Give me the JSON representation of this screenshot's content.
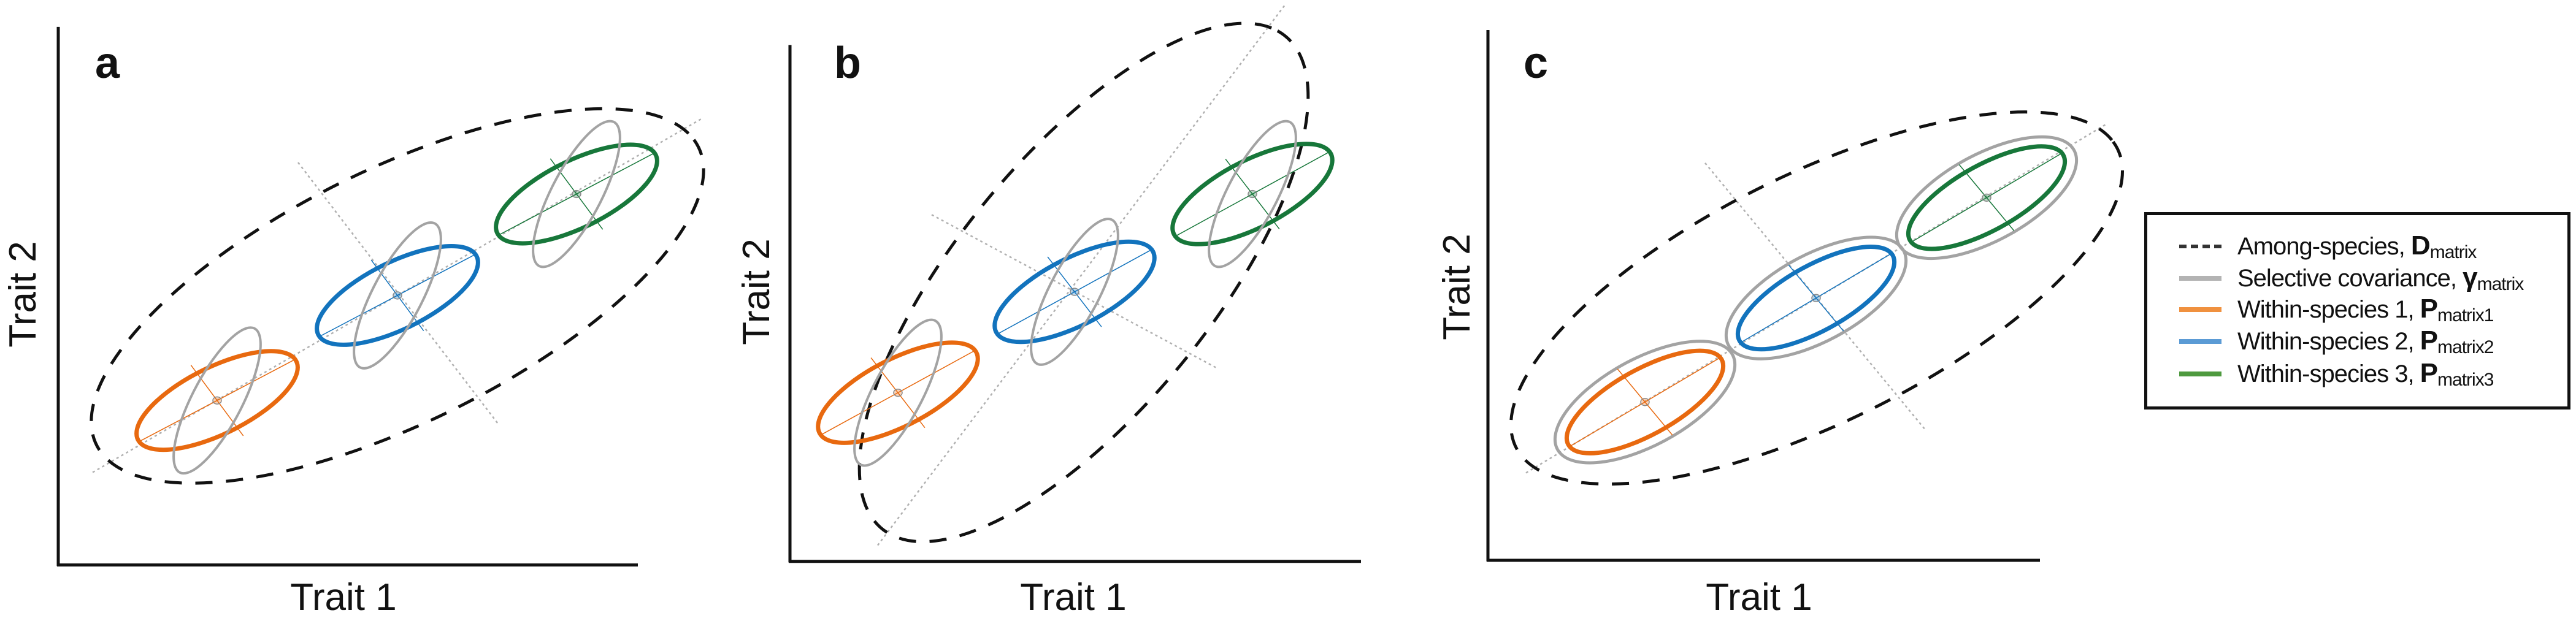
{
  "colors": {
    "among_species": "#111111",
    "selective": "#a3a3a3",
    "species1": "#e8690f",
    "species2": "#1273bd",
    "species3": "#17773a",
    "guide_lines": "#b0b0b0"
  },
  "legend_colors": {
    "selective": "#b3b3b3",
    "species1": "#f0913f",
    "species2": "#5b9bd5",
    "species3": "#4e9a3f"
  },
  "panels": [
    {
      "letter": "a",
      "xlabel": "Trait 1",
      "ylabel": "Trait 2"
    },
    {
      "letter": "b",
      "xlabel": "Trait 1",
      "ylabel": "Trait 2"
    },
    {
      "letter": "c",
      "xlabel": "Trait 1",
      "ylabel": "Trait 2"
    }
  ],
  "legend": {
    "placement": "right",
    "items": [
      {
        "text": "Among-species, ",
        "symbol": "D",
        "sub": "matrix",
        "style": "dashed"
      },
      {
        "text": "Selective covariance, ",
        "symbol": "γ",
        "sub": "matrix",
        "style": "solid"
      },
      {
        "text": "Within-species 1, ",
        "symbol": "P",
        "sub": "matrix1",
        "style": "solid"
      },
      {
        "text": "Within-species 2, ",
        "symbol": "P",
        "sub": "matrix2",
        "style": "solid"
      },
      {
        "text": "Within-species 3, ",
        "symbol": "P",
        "sub": "matrix3",
        "style": "solid"
      }
    ]
  }
}
